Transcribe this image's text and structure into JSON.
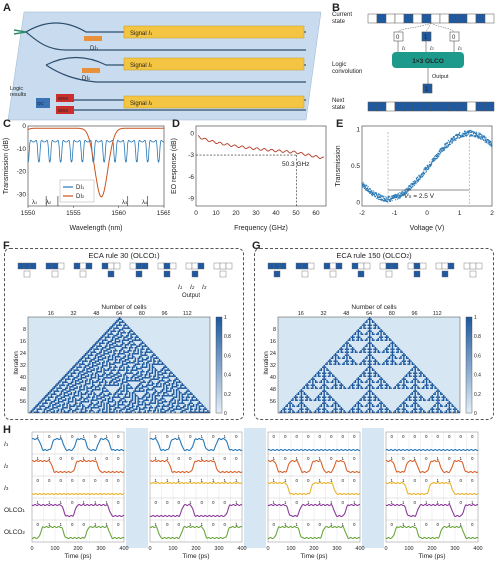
{
  "panels": {
    "A": {
      "letter": "A",
      "dia_label": "DI",
      "dia_sub_1": "1",
      "dia_sub_2": "2",
      "signal_1": "Signal",
      "signal_1_sub": "1",
      "signal_2": "Signal",
      "signal_2_sub": "2",
      "signal_3": "Signal",
      "signal_3_sub": "3",
      "logic_results": "Logic\nresults",
      "oc": "OC",
      "wss_1": "WSS",
      "wss_2": "WSS"
    },
    "B": {
      "letter": "B",
      "current_state": "Current\nstate",
      "logic_conv": "Logic\nconvolution",
      "next_state": "Next\nstate",
      "olco": "1×3 OLCO",
      "output": "Output",
      "val_left": "0",
      "val_mid": "1",
      "val_right": "0",
      "out_val": "1",
      "i1": "I",
      "i2": "I",
      "i3": "I",
      "i1s": "1",
      "i2s": "2",
      "i3s": "3",
      "current_cells": [
        0,
        1,
        0,
        0,
        1,
        0,
        1,
        0,
        0,
        1,
        1,
        0,
        1,
        0
      ],
      "next_cells": [
        1,
        1,
        0,
        1,
        1,
        1,
        1,
        1,
        1,
        1,
        1,
        0,
        1,
        1
      ]
    },
    "C": {
      "letter": "C",
      "ylabel": "Transmission (dB)",
      "xlabel": "Wavelength (nm)",
      "xticks": [
        "1550",
        "1555",
        "1560",
        "1565"
      ],
      "yticks": [
        "0",
        "-10",
        "-20",
        "-30"
      ],
      "legend_1": "DI",
      "legend_1s": "1",
      "legend_2": "DI",
      "legend_2s": "2",
      "l1": "λ",
      "l1s": "1",
      "l2": "λ",
      "l2s": "2",
      "l3": "λ",
      "l3s": "3",
      "l4": "λ",
      "l4s": "4",
      "color_1": "#2878b5",
      "color_2": "#c9541c"
    },
    "D": {
      "letter": "D",
      "ylabel": "EO response (dB)",
      "xlabel": "Frequency (GHz)",
      "xticks": [
        "0",
        "10",
        "20",
        "30",
        "40",
        "50",
        "60"
      ],
      "yticks": [
        "0",
        "-3",
        "-6",
        "-9"
      ],
      "annotation": "50.3 GHz",
      "color": "#b53b2a"
    },
    "E": {
      "letter": "E",
      "ylabel": "Transmission",
      "xlabel": "Voltage (V)",
      "xticks": [
        "-2",
        "-1",
        "0",
        "1",
        "2"
      ],
      "yticks": [
        "1",
        "0.5",
        "0"
      ],
      "vpi": "V",
      "vpi_sub": "π",
      "vpi_val": " = 2.5 V",
      "color": "#2878b5"
    },
    "F": {
      "letter": "F",
      "title": "ECA rule 30 (OLCO",
      "title_sub": "1",
      "title_end": ")",
      "i1": "I",
      "i2": "I",
      "i3": "I",
      "i1s": "1",
      "i2s": "2",
      "i3s": "3",
      "output": "Output",
      "xlabel": "Number of cells",
      "ylabel": "Iteration",
      "xticks": [
        "16",
        "32",
        "48",
        "64",
        "80",
        "96",
        "112"
      ],
      "yticks": [
        "8",
        "16",
        "24",
        "32",
        "40",
        "48",
        "56"
      ],
      "cbar": [
        "1",
        "0.8",
        "0.6",
        "0.4",
        "0.2",
        "0"
      ],
      "rule_out": [
        0,
        0,
        0,
        1,
        1,
        1,
        1,
        0
      ]
    },
    "G": {
      "letter": "G",
      "title": "ECA rule 150 (OLCO",
      "title_sub": "2",
      "title_end": ")",
      "xlabel": "Number of cells",
      "ylabel": "Iteration",
      "xticks": [
        "16",
        "32",
        "48",
        "64",
        "80",
        "96",
        "112"
      ],
      "yticks": [
        "8",
        "16",
        "24",
        "32",
        "40",
        "48",
        "56"
      ],
      "cbar": [
        "1",
        "0.8",
        "0.6",
        "0.4",
        "0.2",
        "0"
      ],
      "rule_out": [
        1,
        0,
        0,
        1,
        0,
        1,
        1,
        0
      ]
    },
    "H": {
      "letter": "H",
      "xlabel": "Time (ps)",
      "xticks": [
        "0",
        "100",
        "200",
        "300",
        "400"
      ],
      "rows": [
        {
          "label": "I",
          "sub": "1",
          "color": "#2878b5"
        },
        {
          "label": "I",
          "sub": "2",
          "color": "#d9622b"
        },
        {
          "label": "I",
          "sub": "3",
          "color": "#e8b32a"
        },
        {
          "label": "OLCO",
          "sub": "1",
          "color": "#8a3a9a"
        },
        {
          "label": "OLCO",
          "sub": "2",
          "color": "#6aa63a"
        }
      ],
      "bits": [
        [
          [
            "1",
            "0",
            "1",
            "0",
            "1",
            "0",
            "1",
            "0"
          ],
          [
            "1",
            "0",
            "1",
            "0",
            "1",
            "0",
            "1",
            "0"
          ],
          [
            "0",
            "0",
            "0",
            "0",
            "0",
            "0",
            "0",
            "0"
          ],
          [
            "0",
            "0",
            "0",
            "0",
            "0",
            "0",
            "0",
            "0"
          ]
        ],
        [
          [
            "1",
            "1",
            "0",
            "0",
            "1",
            "1",
            "0",
            "0"
          ],
          [
            "1",
            "1",
            "0",
            "0",
            "1",
            "1",
            "0",
            "0"
          ],
          [
            "1",
            "0",
            "1",
            "0",
            "1",
            "0",
            "1",
            "0"
          ],
          [
            "1",
            "0",
            "1",
            "0",
            "1",
            "0",
            "1",
            "0"
          ]
        ],
        [
          [
            "0",
            "0",
            "0",
            "0",
            "0",
            "0",
            "0",
            "0"
          ],
          [
            "1",
            "1",
            "1",
            "1",
            "1",
            "1",
            "1",
            "1"
          ],
          [
            "1",
            "1",
            "0",
            "0",
            "1",
            "1",
            "0",
            "0"
          ],
          [
            "1",
            "1",
            "0",
            "0",
            "1",
            "1",
            "0",
            "0"
          ]
        ],
        [
          [
            "1",
            "1",
            "1",
            "0",
            "1",
            "1",
            "1",
            "0"
          ],
          [
            "0",
            "0",
            "0",
            "1",
            "0",
            "0",
            "0",
            "1"
          ],
          [
            "1",
            "1",
            "0",
            "1",
            "1",
            "1",
            "0",
            "1"
          ],
          [
            "1",
            "1",
            "0",
            "1",
            "1",
            "1",
            "0",
            "1"
          ]
        ],
        [
          [
            "0",
            "1",
            "1",
            "0",
            "0",
            "1",
            "1",
            "0"
          ],
          [
            "1",
            "0",
            "0",
            "1",
            "1",
            "0",
            "0",
            "1"
          ],
          [
            "0",
            "1",
            "1",
            "0",
            "0",
            "1",
            "1",
            "0"
          ],
          [
            "0",
            "1",
            "1",
            "0",
            "0",
            "1",
            "1",
            "0"
          ]
        ]
      ]
    }
  }
}
